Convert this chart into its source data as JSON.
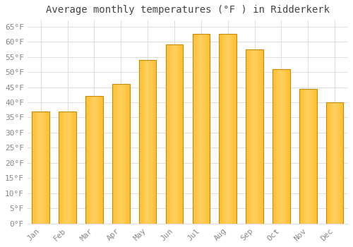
{
  "title": "Average monthly temperatures (°F ) in Ridderkerk",
  "months": [
    "Jan",
    "Feb",
    "Mar",
    "Apr",
    "May",
    "Jun",
    "Jul",
    "Aug",
    "Sep",
    "Oct",
    "Nov",
    "Dec"
  ],
  "values": [
    37,
    37,
    42,
    46,
    54,
    59,
    62.5,
    62.5,
    57.5,
    51,
    44.5,
    40
  ],
  "bar_color_light": "#FFD060",
  "bar_color_mid": "#FFBF30",
  "bar_edge_color": "#CC8800",
  "background_color": "#FFFFFF",
  "grid_color": "#DDDDDD",
  "ylim": [
    0,
    67
  ],
  "yticks": [
    0,
    5,
    10,
    15,
    20,
    25,
    30,
    35,
    40,
    45,
    50,
    55,
    60,
    65
  ],
  "ylabel_suffix": "°F",
  "title_fontsize": 10,
  "tick_fontsize": 8,
  "font_family": "monospace",
  "tick_color": "#888888"
}
